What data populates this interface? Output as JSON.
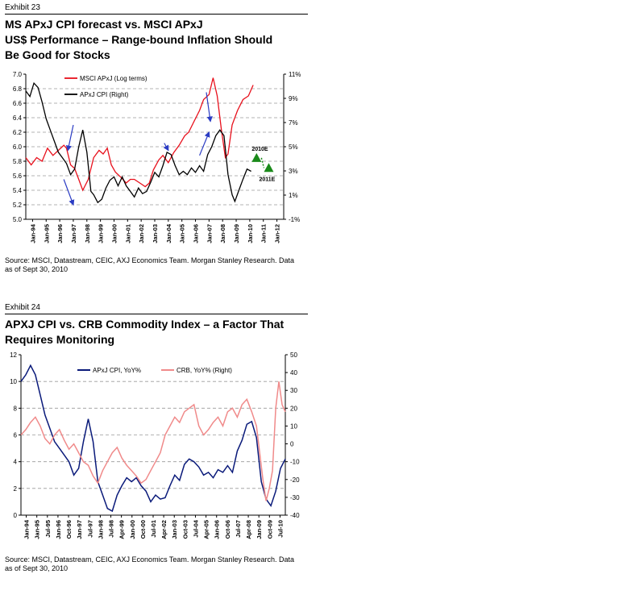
{
  "exhibit1": {
    "label": "Exhibit 23",
    "title_line1": "MS APxJ CPI forecast vs. MSCI APxJ",
    "title_line2": "US$ Performance – Range-bound Inflation Should",
    "title_line3": "Be Good for Stocks",
    "source_line1": "Source: MSCI, Datastream, CEIC, AXJ Economics Team. Morgan Stanley Research. Data",
    "source_line2": "as of Sept 30, 2010"
  },
  "exhibit2": {
    "label": "Exhibit 24",
    "title_line1": "APXJ CPI vs. CRB Commodity Index – a Factor That",
    "title_line2": "Requires Monitoring",
    "source_line1": "Source: MSCI, Datastream, CEIC, AXJ Economics Team. Morgan Stanley Research. Data",
    "source_line2": "as of Sept 30, 2010"
  },
  "colors": {
    "red": "#e8101c",
    "black": "#000000",
    "navy": "#0a1a7a",
    "pink": "#f08a8a",
    "green": "#1a8a1a",
    "arrow": "#2b3cc4"
  },
  "chart_data": [
    {
      "type": "line",
      "x_start": 1994.0,
      "x_end": 2013.0,
      "xticks": [
        "Jan-94",
        "Jan-95",
        "Jan-96",
        "Jan-97",
        "Jan-98",
        "Jan-99",
        "Jan-00",
        "Jan-01",
        "Jan-02",
        "Jan-03",
        "Jan-04",
        "Jan-05",
        "Jan-06",
        "Jan-07",
        "Jan-08",
        "Jan-09",
        "Jan-10",
        "Jan-11",
        "Jan-12"
      ],
      "ylim_left": [
        5.0,
        7.0
      ],
      "yticks_left": [
        "5.0",
        "5.2",
        "5.4",
        "5.6",
        "5.8",
        "6.0",
        "6.2",
        "6.4",
        "6.6",
        "6.8",
        "7.0"
      ],
      "ylim_right": [
        -1,
        12
      ],
      "yticks_right": [
        "-1%",
        "1%",
        "3%",
        "5%",
        "7%",
        "9%",
        "11%"
      ],
      "grid": "dashed horizontal",
      "legend": "top-left",
      "series": [
        {
          "name": "MSCI APxJ (Log terms)",
          "axis": "left",
          "x": [
            1994.0,
            1994.4,
            1994.8,
            1995.2,
            1995.6,
            1996.0,
            1996.4,
            1996.8,
            1997.0,
            1997.3,
            1997.6,
            1997.9,
            1998.2,
            1998.6,
            1999.0,
            1999.4,
            1999.7,
            2000.0,
            2000.3,
            2000.6,
            2001.0,
            2001.4,
            2001.7,
            2002.0,
            2002.4,
            2002.8,
            2003.1,
            2003.4,
            2003.8,
            2004.1,
            2004.5,
            2004.9,
            2005.3,
            2005.7,
            2006.0,
            2006.4,
            2006.8,
            2007.1,
            2007.5,
            2007.8,
            2008.1,
            2008.4,
            2008.7,
            2008.9,
            2009.2,
            2009.6,
            2010.0,
            2010.4,
            2010.75
          ],
          "y": [
            5.85,
            5.75,
            5.85,
            5.8,
            5.98,
            5.88,
            5.95,
            6.02,
            5.98,
            5.75,
            5.7,
            5.55,
            5.4,
            5.55,
            5.85,
            5.95,
            5.9,
            5.98,
            5.75,
            5.65,
            5.58,
            5.5,
            5.55,
            5.55,
            5.5,
            5.45,
            5.5,
            5.68,
            5.82,
            5.88,
            5.78,
            5.92,
            6.02,
            6.15,
            6.2,
            6.35,
            6.5,
            6.65,
            6.72,
            6.95,
            6.7,
            6.25,
            5.85,
            5.9,
            6.3,
            6.5,
            6.65,
            6.7,
            6.85
          ]
        },
        {
          "name": "APxJ CPI (Right)",
          "axis": "right",
          "x": [
            1994.0,
            1994.3,
            1994.6,
            1994.9,
            1995.2,
            1995.5,
            1995.8,
            1996.1,
            1996.4,
            1996.7,
            1997.0,
            1997.3,
            1997.6,
            1997.9,
            1998.2,
            1998.5,
            1998.8,
            1999.0,
            1999.3,
            1999.6,
            1999.9,
            2000.2,
            2000.5,
            2000.8,
            2001.1,
            2001.4,
            2001.7,
            2002.0,
            2002.3,
            2002.6,
            2002.9,
            2003.2,
            2003.5,
            2003.8,
            2004.1,
            2004.4,
            2004.7,
            2005.0,
            2005.3,
            2005.6,
            2005.9,
            2006.2,
            2006.5,
            2006.8,
            2007.1,
            2007.4,
            2007.7,
            2008.0,
            2008.3,
            2008.6,
            2008.9,
            2009.2,
            2009.4,
            2009.7,
            2010.0,
            2010.3,
            2010.6
          ],
          "y": [
            10.5,
            10.0,
            11.2,
            10.8,
            9.5,
            8.0,
            7.0,
            6.0,
            5.0,
            4.5,
            4.0,
            3.0,
            3.5,
            5.5,
            7.0,
            5.0,
            1.5,
            1.2,
            0.5,
            0.8,
            1.8,
            2.5,
            2.8,
            2.0,
            2.8,
            2.0,
            1.5,
            1.0,
            1.8,
            1.3,
            1.5,
            2.3,
            3.2,
            2.8,
            3.8,
            5.0,
            4.8,
            3.8,
            3.0,
            3.3,
            3.0,
            3.6,
            3.2,
            3.8,
            3.3,
            4.8,
            5.5,
            6.5,
            7.0,
            6.5,
            3.0,
            1.2,
            0.6,
            1.6,
            2.6,
            3.5,
            3.3
          ]
        }
      ],
      "forecasts": [
        {
          "label": "2010E",
          "x": 2011.0,
          "y": 4.5
        },
        {
          "label": "2011E",
          "x": 2011.9,
          "y": 3.6
        }
      ],
      "annotation_arrows": [
        {
          "from": [
            1997.5,
            6.3
          ],
          "to": [
            1997.1,
            5.95
          ]
        },
        {
          "from": [
            1996.8,
            5.55
          ],
          "to": [
            1997.5,
            5.2
          ]
        },
        {
          "from": [
            2004.2,
            6.05
          ],
          "to": [
            2004.5,
            5.95
          ]
        },
        {
          "from": [
            2006.8,
            5.88
          ],
          "to": [
            2007.5,
            6.2
          ]
        },
        {
          "from": [
            2007.3,
            6.75
          ],
          "to": [
            2007.6,
            6.35
          ]
        }
      ]
    },
    {
      "type": "line",
      "x_start": 1994.0,
      "x_end": 2010.5,
      "xticks": [
        "Jan-94",
        "Jan-95",
        "Jul-95",
        "Jan-96",
        "Oct-96",
        "Jan-97",
        "Jul-97",
        "Jan-98",
        "Jul-98",
        "Apr-99",
        "Jan-00",
        "Oct-00",
        "Jul-01",
        "Apr-02",
        "Jan-03",
        "Oct-03",
        "Jul-04",
        "Apr-05",
        "Jan-06",
        "Oct-06",
        "Jul-07",
        "Apr-08",
        "Jan-09",
        "Oct-09",
        "Jul-10"
      ],
      "ylim_left": [
        0,
        12
      ],
      "yticks_left": [
        "0",
        "2",
        "4",
        "6",
        "8",
        "10",
        "12"
      ],
      "ylim_right": [
        -40,
        50
      ],
      "yticks_right": [
        "-40",
        "-30",
        "-20",
        "-10",
        "0",
        "10",
        "20",
        "30",
        "40",
        "50"
      ],
      "grid": "dashed horizontal",
      "legend": "top",
      "series": [
        {
          "name": "APxJ CPI, YoY%",
          "axis": "left",
          "x": [
            1994.0,
            1994.3,
            1994.6,
            1994.9,
            1995.2,
            1995.5,
            1995.8,
            1996.1,
            1996.4,
            1996.7,
            1997.0,
            1997.3,
            1997.6,
            1997.9,
            1998.2,
            1998.5,
            1998.8,
            1999.1,
            1999.4,
            1999.7,
            2000.0,
            2000.3,
            2000.6,
            2000.9,
            2001.2,
            2001.5,
            2001.8,
            2002.1,
            2002.4,
            2002.7,
            2003.0,
            2003.3,
            2003.6,
            2003.9,
            2004.2,
            2004.5,
            2004.8,
            2005.1,
            2005.4,
            2005.7,
            2006.0,
            2006.3,
            2006.6,
            2006.9,
            2007.2,
            2007.5,
            2007.8,
            2008.1,
            2008.4,
            2008.7,
            2009.0,
            2009.3,
            2009.6,
            2009.9,
            2010.2,
            2010.5
          ],
          "y": [
            10.0,
            10.5,
            11.2,
            10.5,
            9.0,
            7.5,
            6.5,
            5.5,
            5.0,
            4.5,
            4.0,
            3.0,
            3.5,
            5.5,
            7.2,
            5.5,
            2.5,
            1.5,
            0.5,
            0.3,
            1.5,
            2.2,
            2.8,
            2.5,
            2.8,
            2.2,
            1.8,
            1.0,
            1.5,
            1.2,
            1.3,
            2.2,
            3.0,
            2.6,
            3.8,
            4.2,
            4.0,
            3.6,
            3.0,
            3.2,
            2.8,
            3.4,
            3.2,
            3.7,
            3.2,
            4.8,
            5.6,
            6.8,
            7.0,
            5.8,
            2.5,
            1.2,
            0.7,
            1.8,
            3.5,
            4.2
          ]
        },
        {
          "name": "CRB, YoY% (Right)",
          "axis": "right",
          "x": [
            1994.0,
            1994.3,
            1994.6,
            1994.9,
            1995.2,
            1995.5,
            1995.8,
            1996.1,
            1996.4,
            1996.7,
            1997.0,
            1997.3,
            1997.6,
            1997.9,
            1998.2,
            1998.5,
            1998.8,
            1999.1,
            1999.4,
            1999.7,
            2000.0,
            2000.3,
            2000.6,
            2000.9,
            2001.2,
            2001.5,
            2001.8,
            2002.1,
            2002.4,
            2002.7,
            2003.0,
            2003.3,
            2003.6,
            2003.9,
            2004.2,
            2004.5,
            2004.8,
            2005.1,
            2005.4,
            2005.7,
            2006.0,
            2006.3,
            2006.6,
            2006.9,
            2007.2,
            2007.5,
            2007.8,
            2008.1,
            2008.4,
            2008.7,
            2008.9,
            2009.1,
            2009.3,
            2009.5,
            2009.7,
            2009.9,
            2010.1,
            2010.3,
            2010.5
          ],
          "y": [
            5,
            8,
            12,
            15,
            10,
            3,
            0,
            5,
            8,
            2,
            -3,
            0,
            -5,
            -10,
            -12,
            -18,
            -22,
            -15,
            -10,
            -5,
            -2,
            -8,
            -12,
            -15,
            -18,
            -22,
            -20,
            -15,
            -10,
            -5,
            5,
            10,
            15,
            12,
            18,
            20,
            22,
            10,
            5,
            8,
            12,
            15,
            10,
            18,
            20,
            15,
            22,
            25,
            18,
            10,
            -5,
            -20,
            -32,
            -25,
            -15,
            20,
            35,
            22,
            18
          ]
        }
      ]
    }
  ]
}
